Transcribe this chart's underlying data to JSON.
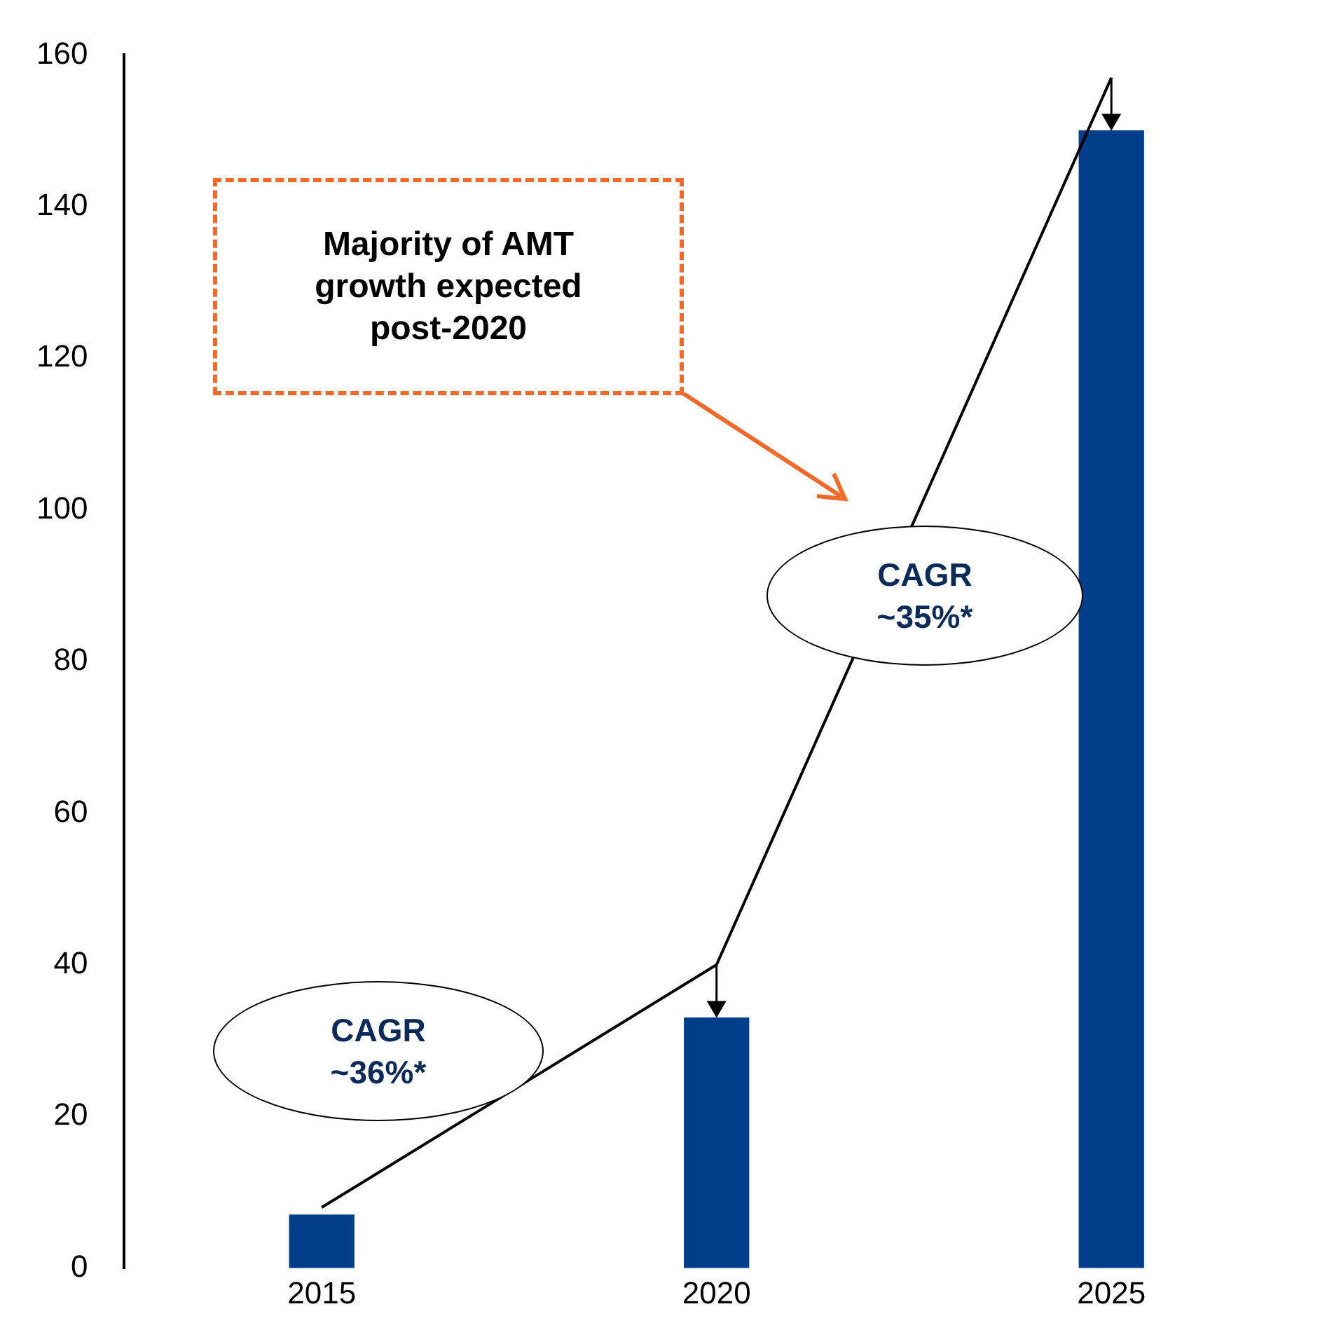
{
  "chart_data": {
    "type": "bar",
    "categories": [
      "2015",
      "2020",
      "2025"
    ],
    "series": [
      {
        "color": "#023e8a",
        "values": [
          7,
          33,
          150
        ]
      },
      {
        "type": "line",
        "color": "#000000",
        "values": [
          8,
          40,
          157
        ],
        "marker": "none"
      }
    ],
    "ylim": [
      0,
      160
    ],
    "yticks": [
      0,
      20,
      40,
      60,
      80,
      100,
      120,
      140,
      160
    ],
    "grid": false,
    "legend": false,
    "annotations": [
      "Majority of AMT growth expected post-2020",
      "CAGR ~36%*",
      "CAGR ~35%*"
    ]
  }
}
